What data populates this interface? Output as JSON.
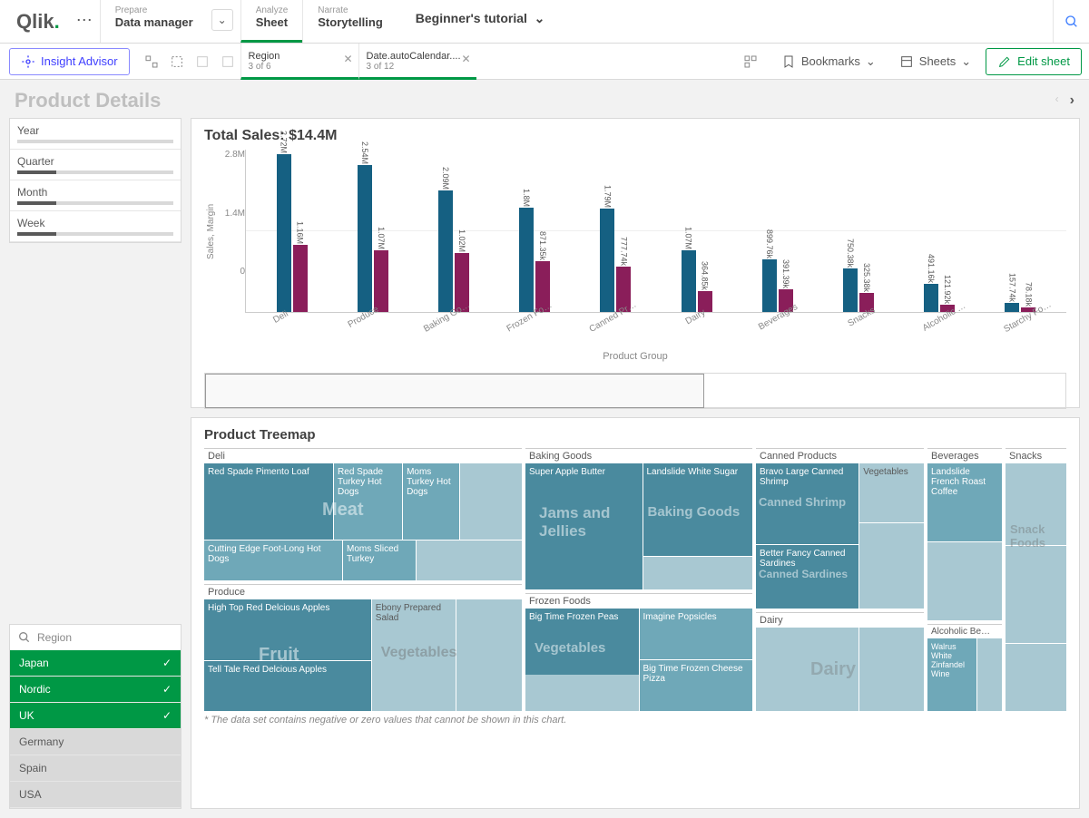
{
  "logo": "Qlik",
  "nav": [
    {
      "label": "Prepare",
      "value": "Data manager"
    },
    {
      "label": "Analyze",
      "value": "Sheet",
      "active": true
    },
    {
      "label": "Narrate",
      "value": "Storytelling"
    }
  ],
  "tutorial_title": "Beginner's tutorial",
  "insight": "Insight Advisor",
  "selections": [
    {
      "field": "Region",
      "count": "3 of 6"
    },
    {
      "field": "Date.autoCalendar....",
      "count": "3 of 12"
    }
  ],
  "toolbar": {
    "bookmarks": "Bookmarks",
    "sheets": "Sheets",
    "edit": "Edit sheet"
  },
  "sheet_title": "Product Details",
  "time_filters": [
    "Year",
    "Quarter",
    "Month",
    "Week"
  ],
  "region_filter": {
    "label": "Region",
    "items": [
      {
        "name": "Japan",
        "sel": true
      },
      {
        "name": "Nordic",
        "sel": true
      },
      {
        "name": "UK",
        "sel": true
      },
      {
        "name": "Germany",
        "sel": false
      },
      {
        "name": "Spain",
        "sel": false
      },
      {
        "name": "USA",
        "sel": false
      }
    ]
  },
  "barchart": {
    "title": "Total Sales: $14.4M",
    "y_label": "Sales, Margin",
    "y_ticks": [
      "2.8M",
      "1.4M",
      "0"
    ],
    "colors": {
      "sales": "#156082",
      "margin": "#8a1e5a"
    },
    "ylim": [
      0,
      2800000
    ],
    "x_axis": "Product Group",
    "categories": [
      {
        "name": "Deli",
        "sales": 2720000,
        "margin": 1160000,
        "sl": "2.72M",
        "ml": "1.16M"
      },
      {
        "name": "Produce",
        "sales": 2540000,
        "margin": 1070000,
        "sl": "2.54M",
        "ml": "1.07M"
      },
      {
        "name": "Baking Go…",
        "sales": 2090000,
        "margin": 1020000,
        "sl": "2.09M",
        "ml": "1.02M"
      },
      {
        "name": "Frozen Fo…",
        "sales": 1800000,
        "margin": 871350,
        "sl": "1.8M",
        "ml": "871.35k"
      },
      {
        "name": "Canned Pr…",
        "sales": 1790000,
        "margin": 777740,
        "sl": "1.79M",
        "ml": "777.74k"
      },
      {
        "name": "Dairy",
        "sales": 1070000,
        "margin": 364850,
        "sl": "1.07M",
        "ml": "364.85k"
      },
      {
        "name": "Beverages",
        "sales": 899760,
        "margin": 391390,
        "sl": "899.76k",
        "ml": "391.39k"
      },
      {
        "name": "Snacks",
        "sales": 750380,
        "margin": 325380,
        "sl": "750.38k",
        "ml": "325.38k"
      },
      {
        "name": "Alcoholic …",
        "sales": 491160,
        "margin": 121920,
        "sl": "491.16k",
        "ml": "121.92k"
      },
      {
        "name": "Starchy Fo…",
        "sales": 157740,
        "margin": 78180,
        "sl": "157.74k",
        "ml": "78.18k"
      }
    ]
  },
  "treemap": {
    "title": "Product Treemap",
    "footnote": "* The data set contains negative or zero values that cannot be shown in this chart.",
    "groups": {
      "deli": {
        "hdr": "Deli",
        "ghost": "Meat",
        "cells": [
          "Red Spade Pimento Loaf",
          "Red Spade Turkey Hot Dogs",
          "Moms Turkey Hot Dogs",
          "Cutting Edge Foot-Long Hot Dogs",
          "Moms Sliced Turkey"
        ]
      },
      "produce": {
        "hdr": "Produce",
        "ghost1": "Fruit",
        "ghost2": "Vegetables",
        "cells": [
          "High Top Red Delcious Apples",
          "Tell Tale Red Delcious Apples",
          "Ebony Prepared Salad"
        ]
      },
      "baking": {
        "hdr": "Baking Goods",
        "ghost1": "Jams and Jellies",
        "ghost2": "Baking Goods",
        "cells": [
          "Super Apple Butter",
          "Landslide White Sugar"
        ]
      },
      "frozen": {
        "hdr": "Frozen Foods",
        "ghost": "Vegetables",
        "cells": [
          "Big Time Frozen Peas",
          "Imagine Popsicles",
          "Big Time Frozen Cheese Pizza"
        ]
      },
      "canned": {
        "hdr": "Canned Products",
        "ghost1": "Canned Shrimp",
        "ghost2": "Canned Sardines",
        "cells": [
          "Bravo Large Canned Shrimp",
          "Better Fancy Canned Sardines",
          "Vegetables"
        ]
      },
      "dairy": {
        "hdr": "Dairy",
        "ghost": "Dairy"
      },
      "bev": {
        "hdr": "Beverages",
        "cells": [
          "Landslide French Roast Coffee"
        ]
      },
      "snacks": {
        "hdr": "Snacks",
        "ghost": "Snack Foods"
      },
      "alc": {
        "hdr": "Alcoholic Be…",
        "cells": [
          "Walrus White Zinfandel Wine"
        ]
      }
    }
  }
}
